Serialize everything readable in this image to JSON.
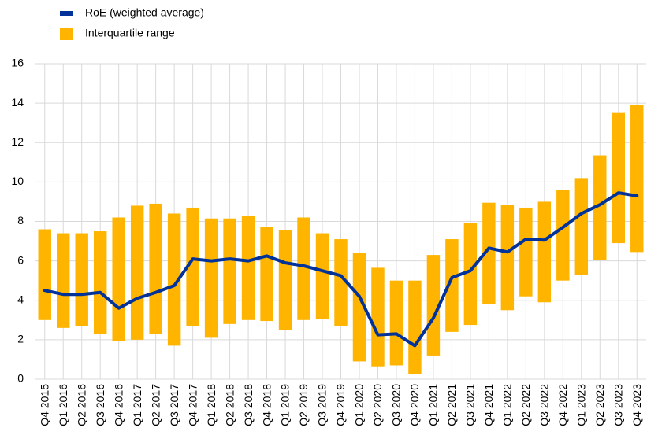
{
  "chart_data": {
    "type": "bar-line",
    "categories": [
      "Q4 2015",
      "Q1 2016",
      "Q2 2016",
      "Q3 2016",
      "Q4 2016",
      "Q1 2017",
      "Q2 2017",
      "Q3 2017",
      "Q4 2017",
      "Q1 2018",
      "Q2 2018",
      "Q3 2018",
      "Q4 2018",
      "Q1 2019",
      "Q2 2019",
      "Q3 2019",
      "Q4 2019",
      "Q1 2020",
      "Q2 2020",
      "Q3 2020",
      "Q4 2020",
      "Q1 2021",
      "Q2 2021",
      "Q3 2021",
      "Q4 2021",
      "Q1 2022",
      "Q2 2022",
      "Q3 2022",
      "Q4 2022",
      "Q1 2023",
      "Q2 2023",
      "Q3 2023",
      "Q4 2023"
    ],
    "series": [
      {
        "name": "RoE (weighted average)",
        "color": "#003299",
        "type": "line",
        "values": [
          4.5,
          4.3,
          4.3,
          4.4,
          3.6,
          4.1,
          4.4,
          4.75,
          6.1,
          6.0,
          6.1,
          6.0,
          6.25,
          5.9,
          5.75,
          5.5,
          5.25,
          4.2,
          2.25,
          2.3,
          1.7,
          3.1,
          5.15,
          5.5,
          6.65,
          6.45,
          7.1,
          7.05,
          7.7,
          8.4,
          8.85,
          9.45,
          9.3
        ]
      },
      {
        "name": "Interquartile range",
        "color": "#ffb400",
        "type": "range",
        "low": [
          3.0,
          2.6,
          2.7,
          2.3,
          1.95,
          2.0,
          2.3,
          1.7,
          2.7,
          2.1,
          2.8,
          3.0,
          2.95,
          2.5,
          3.0,
          3.05,
          2.7,
          0.9,
          0.65,
          0.7,
          0.25,
          1.2,
          2.4,
          2.75,
          3.8,
          3.5,
          4.2,
          3.9,
          5.0,
          5.3,
          6.05,
          6.9,
          6.45
        ],
        "high": [
          7.6,
          7.4,
          7.4,
          7.5,
          8.2,
          8.8,
          8.9,
          8.4,
          8.7,
          8.15,
          8.15,
          8.3,
          7.7,
          7.55,
          8.2,
          7.4,
          7.1,
          6.4,
          5.65,
          5.0,
          5.0,
          6.3,
          7.1,
          7.9,
          8.95,
          8.85,
          8.7,
          9.0,
          9.6,
          10.2,
          11.35,
          13.5,
          13.9
        ]
      }
    ],
    "ylim": [
      0,
      16
    ],
    "yticks": [
      0,
      2,
      4,
      6,
      8,
      10,
      12,
      14,
      16
    ],
    "grid": true
  }
}
